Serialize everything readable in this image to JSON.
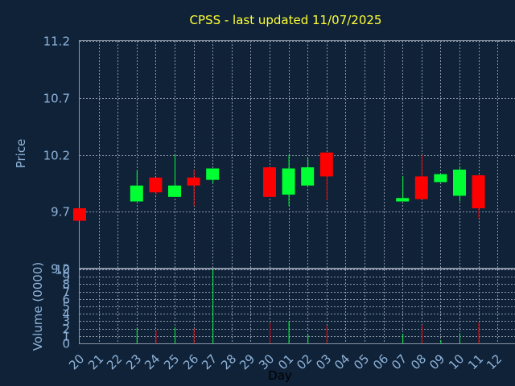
{
  "chart_data": {
    "type": "candlestick",
    "title": "CPSS - last updated 11/07/2025",
    "xlabel": "Day",
    "ylabel_price": "Price",
    "ylabel_volume": "Volume (0000)",
    "price_ylim": [
      9.2,
      11.2
    ],
    "price_ticks": [
      "11.2",
      "10.7",
      "10.2",
      "9.7",
      "9.2"
    ],
    "volume_ylim": [
      0,
      10
    ],
    "volume_ticks": [
      "10",
      "9",
      "8",
      "7",
      "6",
      "5",
      "4",
      "3",
      "2",
      "1",
      "0"
    ],
    "x_ticks": [
      "20",
      "21",
      "22",
      "23",
      "24",
      "25",
      "26",
      "27",
      "28",
      "29",
      "30",
      "01",
      "02",
      "03",
      "04",
      "05",
      "06",
      "07",
      "08",
      "09",
      "10",
      "11",
      "12"
    ],
    "grid": true,
    "colors": {
      "up": "#00ff33",
      "down": "#ff0000",
      "grid": "#8c96a8"
    },
    "candles": [
      {
        "x": "20",
        "open": 9.73,
        "close": 9.62,
        "high": 9.73,
        "low": 9.62,
        "volume": 0.0
      },
      {
        "x": "23",
        "open": 9.79,
        "close": 9.93,
        "high": 10.06,
        "low": 9.79,
        "volume": 2.0
      },
      {
        "x": "24",
        "open": 10.0,
        "close": 9.87,
        "high": 10.0,
        "low": 9.85,
        "volume": 1.8
      },
      {
        "x": "25",
        "open": 9.83,
        "close": 9.93,
        "high": 10.2,
        "low": 9.83,
        "volume": 2.2
      },
      {
        "x": "26",
        "open": 10.0,
        "close": 9.93,
        "high": 10.07,
        "low": 9.75,
        "volume": 2.0
      },
      {
        "x": "27",
        "open": 9.98,
        "close": 10.08,
        "high": 10.08,
        "low": 9.95,
        "volume": 10.0
      },
      {
        "x": "30",
        "open": 10.09,
        "close": 9.83,
        "high": 10.09,
        "low": 9.83,
        "volume": 2.8
      },
      {
        "x": "01",
        "open": 9.85,
        "close": 10.08,
        "high": 10.2,
        "low": 9.75,
        "volume": 3.0
      },
      {
        "x": "02",
        "open": 9.93,
        "close": 10.09,
        "high": 10.17,
        "low": 9.93,
        "volume": 1.2
      },
      {
        "x": "03",
        "open": 10.22,
        "close": 10.01,
        "high": 10.22,
        "low": 9.8,
        "volume": 2.4
      },
      {
        "x": "07",
        "open": 9.79,
        "close": 9.82,
        "high": 10.01,
        "low": 9.79,
        "volume": 1.3
      },
      {
        "x": "08",
        "open": 10.01,
        "close": 9.81,
        "high": 10.2,
        "low": 9.81,
        "volume": 2.5
      },
      {
        "x": "09",
        "open": 9.96,
        "close": 10.03,
        "high": 10.03,
        "low": 9.96,
        "volume": 0.4
      },
      {
        "x": "10",
        "open": 9.84,
        "close": 10.07,
        "high": 10.1,
        "low": 9.79,
        "volume": 1.4
      },
      {
        "x": "11",
        "open": 10.02,
        "close": 9.73,
        "high": 10.02,
        "low": 9.64,
        "volume": 2.8
      }
    ]
  }
}
